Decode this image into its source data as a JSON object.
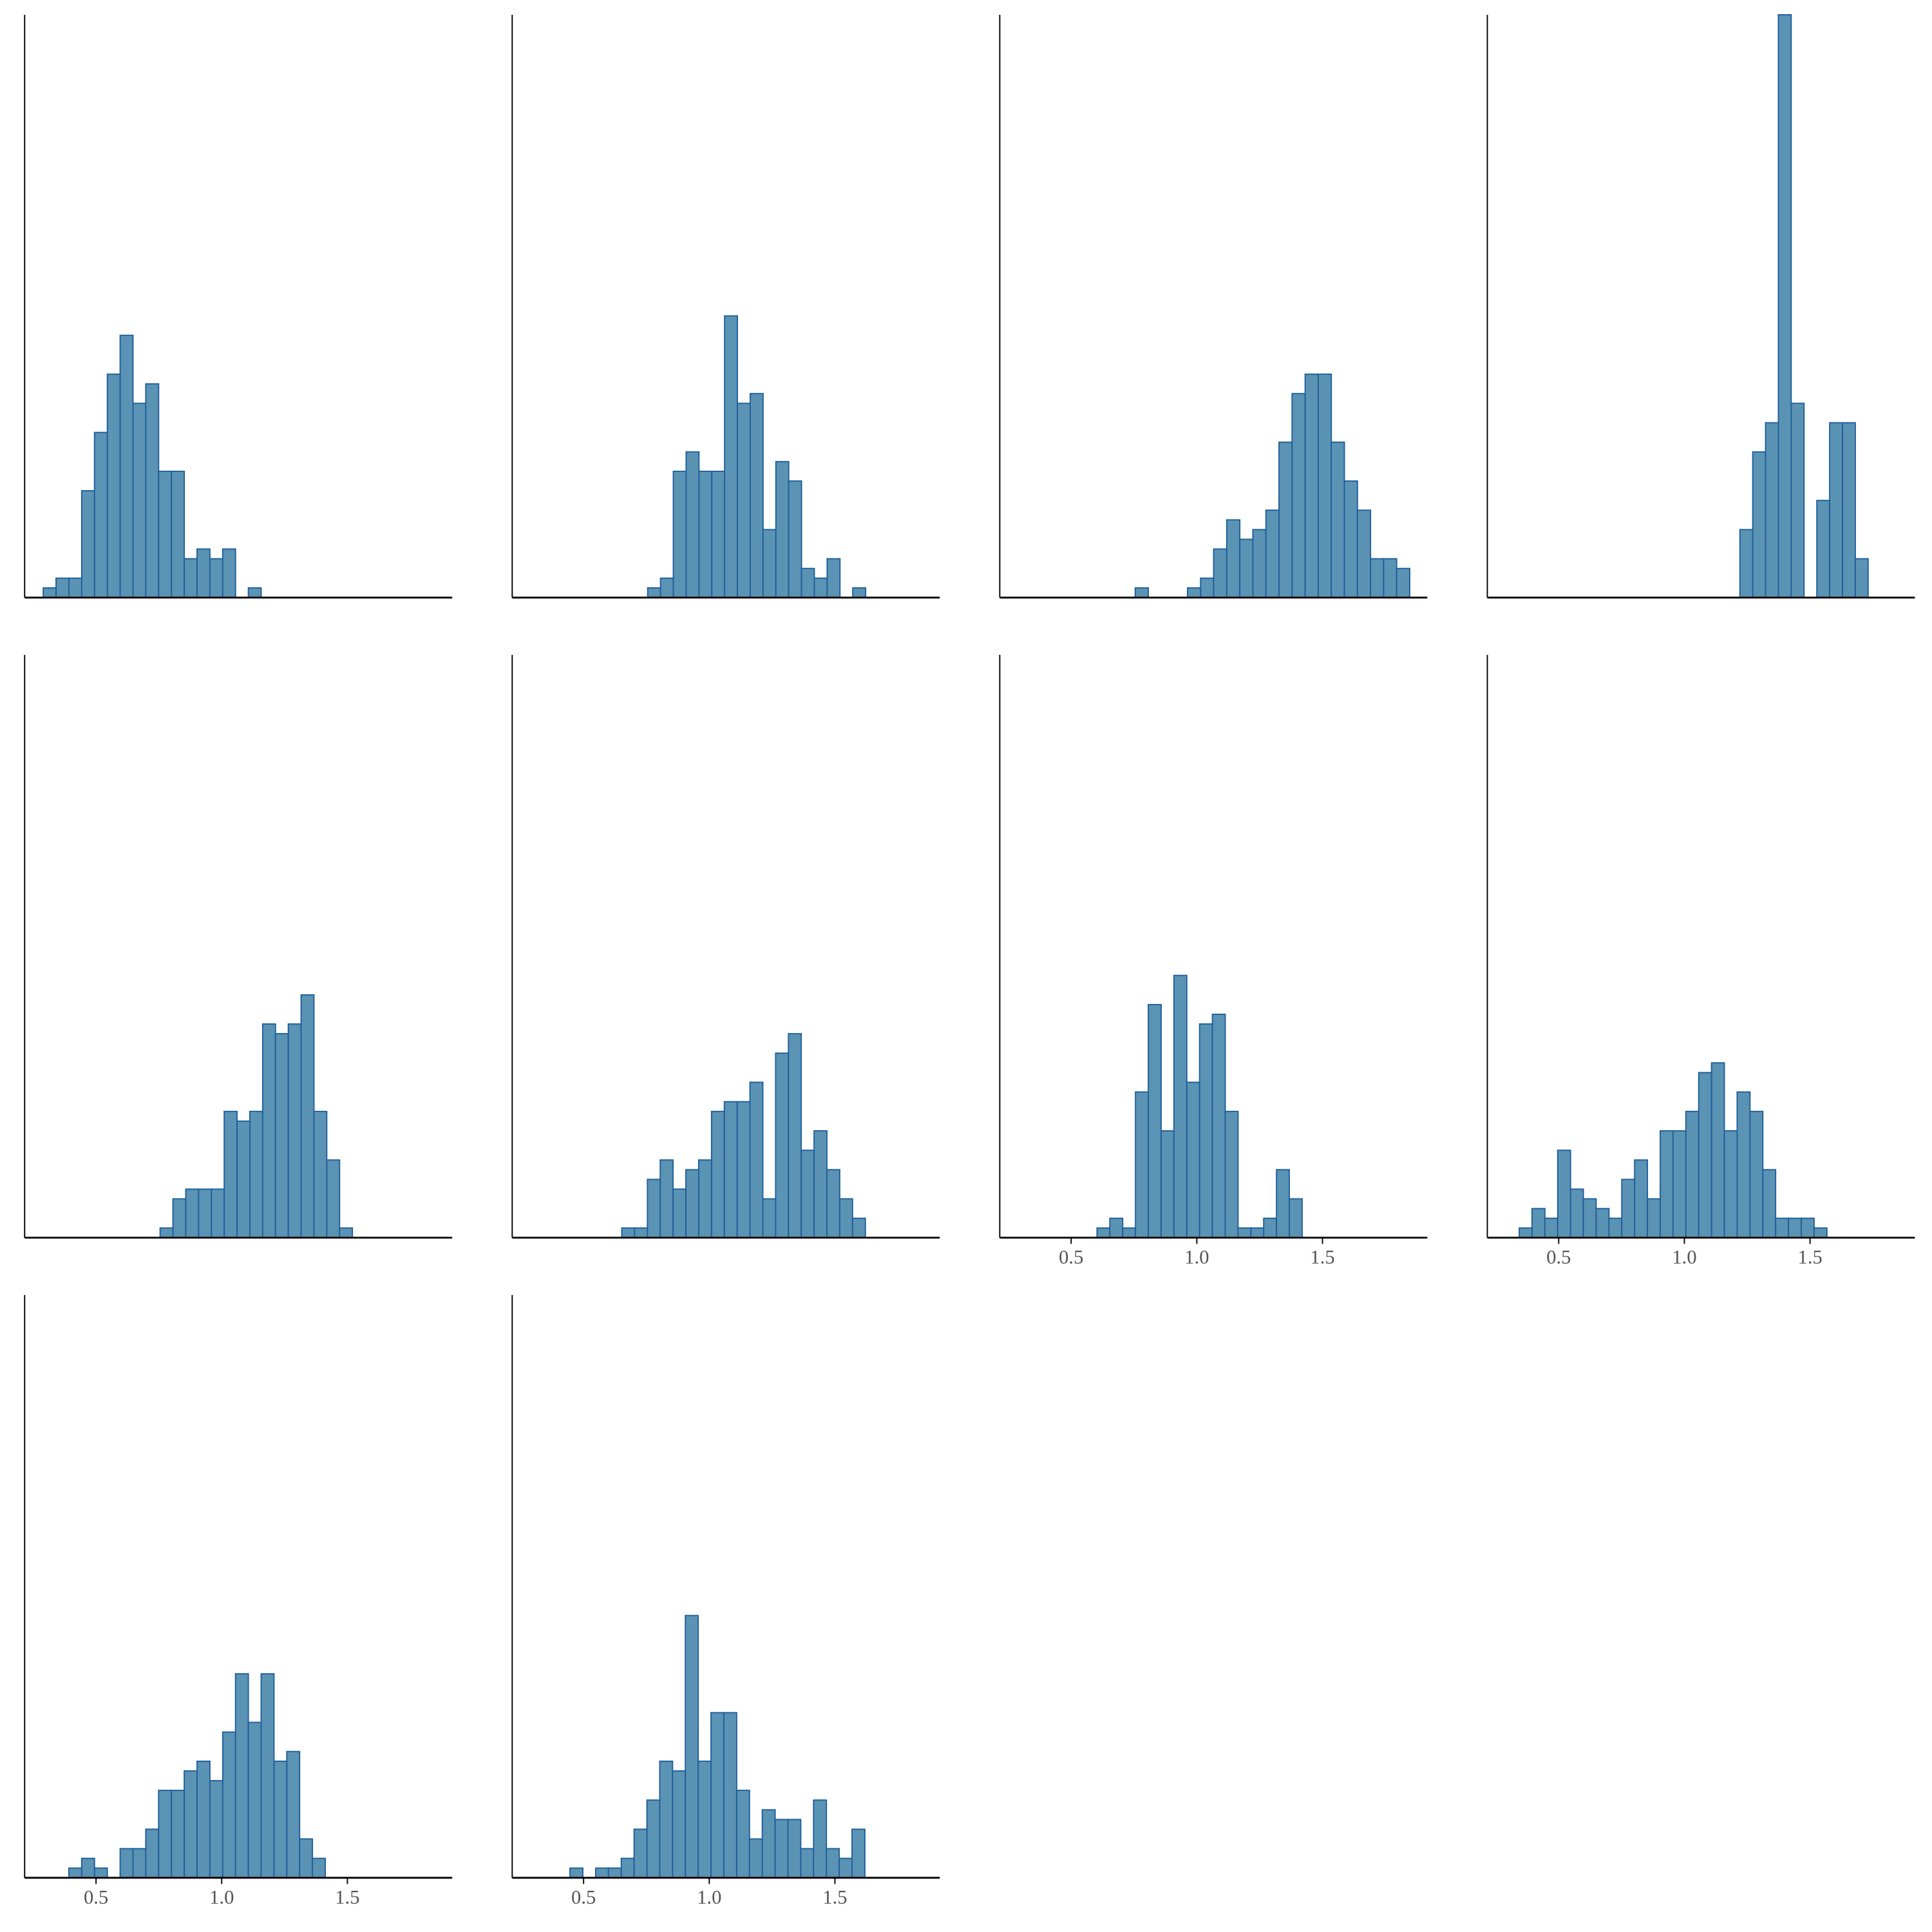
{
  "chart_data": [
    {
      "type": "histogram",
      "color": "#5b93b4",
      "edgecolor": "#1f5f9a",
      "xlim": [
        0.216,
        1.917
      ],
      "ylim": [
        0,
        60
      ],
      "bins": [
        0.29,
        0.341,
        0.392,
        0.443,
        0.494,
        0.545,
        0.596,
        0.647,
        0.698,
        0.749,
        0.8,
        0.851,
        0.902,
        0.953,
        1.004,
        1.055,
        1.106,
        1.157
      ],
      "counts": [
        1,
        2,
        2,
        11,
        17,
        23,
        27,
        20,
        22,
        13,
        13,
        4,
        5,
        4,
        5,
        0,
        1
      ]
    },
    {
      "type": "histogram",
      "color": "#5b93b4",
      "edgecolor": "#1f5f9a",
      "xlim": [
        0.216,
        1.917
      ],
      "ylim": [
        0,
        60
      ],
      "bins": [
        0.755,
        0.806,
        0.857,
        0.908,
        0.959,
        1.01,
        1.061,
        1.112,
        1.163,
        1.214,
        1.265,
        1.316,
        1.367,
        1.418,
        1.469,
        1.52,
        1.571,
        1.622
      ],
      "counts": [
        1,
        2,
        13,
        15,
        13,
        13,
        29,
        20,
        21,
        7,
        14,
        12,
        3,
        2,
        4,
        0,
        1
      ]
    },
    {
      "type": "histogram",
      "color": "#5b93b4",
      "edgecolor": "#1f5f9a",
      "xlim": [
        0.216,
        1.917
      ],
      "ylim": [
        0,
        60
      ],
      "bins": [
        0.755,
        0.807,
        0.859,
        0.911,
        0.963,
        1.015,
        1.067,
        1.119,
        1.171,
        1.223,
        1.275,
        1.327,
        1.379,
        1.431,
        1.483,
        1.535,
        1.587,
        1.639,
        1.691,
        1.743,
        1.795,
        1.847
      ],
      "counts": [
        1,
        0,
        0,
        0,
        1,
        2,
        5,
        8,
        6,
        7,
        9,
        16,
        21,
        23,
        23,
        16,
        12,
        9,
        4,
        4,
        3
      ]
    },
    {
      "type": "histogram",
      "color": "#5b93b4",
      "edgecolor": "#1f5f9a",
      "xlim": [
        0.216,
        1.917
      ],
      "ylim": [
        0,
        60
      ],
      "bins": [
        1.221,
        1.272,
        1.323,
        1.374,
        1.425,
        1.476,
        1.527,
        1.578,
        1.629,
        1.68,
        1.731
      ],
      "counts": [
        7,
        15,
        18,
        60,
        20,
        0,
        10,
        18,
        18,
        4
      ]
    },
    {
      "type": "histogram",
      "color": "#5b93b4",
      "edgecolor": "#1f5f9a",
      "xlim": [
        0.216,
        1.917
      ],
      "ylim": [
        0,
        60
      ],
      "bins": [
        0.755,
        0.806,
        0.857,
        0.908,
        0.959,
        1.01,
        1.061,
        1.112,
        1.163,
        1.214,
        1.265,
        1.316,
        1.367,
        1.418,
        1.469,
        1.52
      ],
      "counts": [
        1,
        4,
        5,
        5,
        5,
        13,
        12,
        13,
        22,
        21,
        22,
        25,
        13,
        8,
        1
      ]
    },
    {
      "type": "histogram",
      "color": "#5b93b4",
      "edgecolor": "#1f5f9a",
      "xlim": [
        0.216,
        1.917
      ],
      "ylim": [
        0,
        60
      ],
      "bins": [
        0.652,
        0.703,
        0.754,
        0.805,
        0.856,
        0.907,
        0.958,
        1.009,
        1.06,
        1.111,
        1.162,
        1.213,
        1.264,
        1.315,
        1.366,
        1.417,
        1.468,
        1.519,
        1.57,
        1.621
      ],
      "counts": [
        1,
        1,
        6,
        8,
        5,
        7,
        8,
        13,
        14,
        14,
        16,
        4,
        19,
        21,
        9,
        11,
        7,
        4,
        2
      ]
    },
    {
      "type": "histogram",
      "color": "#5b93b4",
      "edgecolor": "#1f5f9a",
      "xlim": [
        0.216,
        1.917
      ],
      "ylim": [
        0,
        60
      ],
      "xticks": [
        0.5,
        {
          "value": 1.0,
          "label": "1.0"
        },
        1.5
      ],
      "bins": [
        0.603,
        0.654,
        0.705,
        0.756,
        0.807,
        0.858,
        0.909,
        0.96,
        1.011,
        1.062,
        1.113,
        1.164,
        1.215,
        1.266,
        1.317,
        1.368,
        1.419
      ],
      "counts": [
        1,
        2,
        1,
        15,
        24,
        11,
        27,
        16,
        22,
        23,
        13,
        1,
        1,
        2,
        7,
        4
      ]
    },
    {
      "type": "histogram",
      "color": "#5b93b4",
      "edgecolor": "#1f5f9a",
      "xlim": [
        0.216,
        1.917
      ],
      "ylim": [
        0,
        60
      ],
      "xticks": [
        0.5,
        {
          "value": 1.0,
          "label": "1.0"
        },
        1.5
      ],
      "bins": [
        0.343,
        0.394,
        0.445,
        0.496,
        0.547,
        0.598,
        0.649,
        0.7,
        0.751,
        0.802,
        0.853,
        0.904,
        0.955,
        1.006,
        1.057,
        1.108,
        1.159,
        1.21,
        1.261,
        1.312,
        1.363,
        1.414,
        1.465,
        1.516,
        1.567
      ],
      "counts": [
        1,
        3,
        2,
        9,
        5,
        4,
        3,
        2,
        6,
        8,
        4,
        11,
        11,
        13,
        17,
        18,
        11,
        15,
        13,
        7,
        2,
        2,
        2,
        1
      ]
    },
    {
      "type": "histogram",
      "color": "#5b93b4",
      "edgecolor": "#1f5f9a",
      "xlim": [
        0.216,
        1.917
      ],
      "ylim": [
        0,
        60
      ],
      "xticks": [
        0.5,
        {
          "value": 1.0,
          "label": "1.0"
        },
        1.5
      ],
      "bins": [
        0.392,
        0.443,
        0.494,
        0.545,
        0.596,
        0.647,
        0.698,
        0.749,
        0.8,
        0.851,
        0.902,
        0.953,
        1.004,
        1.055,
        1.106,
        1.157,
        1.208,
        1.259,
        1.31,
        1.361,
        1.412
      ],
      "counts": [
        1,
        2,
        1,
        0,
        3,
        3,
        5,
        9,
        9,
        11,
        12,
        10,
        15,
        21,
        16,
        21,
        12,
        13,
        4,
        2
      ]
    },
    {
      "type": "histogram",
      "color": "#5b93b4",
      "edgecolor": "#1f5f9a",
      "xlim": [
        0.216,
        1.917
      ],
      "ylim": [
        0,
        60
      ],
      "xticks": [
        0.5,
        {
          "value": 1.0,
          "label": "1.0"
        },
        1.5
      ],
      "bins": [
        0.446,
        0.497,
        0.548,
        0.599,
        0.65,
        0.701,
        0.752,
        0.803,
        0.854,
        0.905,
        0.956,
        1.007,
        1.058,
        1.109,
        1.16,
        1.211,
        1.262,
        1.313,
        1.364,
        1.415,
        1.466,
        1.517,
        1.568,
        1.619
      ],
      "counts": [
        1,
        0,
        1,
        1,
        2,
        5,
        8,
        12,
        11,
        27,
        12,
        17,
        17,
        9,
        4,
        7,
        6,
        6,
        3,
        8,
        3,
        2,
        5
      ]
    }
  ]
}
